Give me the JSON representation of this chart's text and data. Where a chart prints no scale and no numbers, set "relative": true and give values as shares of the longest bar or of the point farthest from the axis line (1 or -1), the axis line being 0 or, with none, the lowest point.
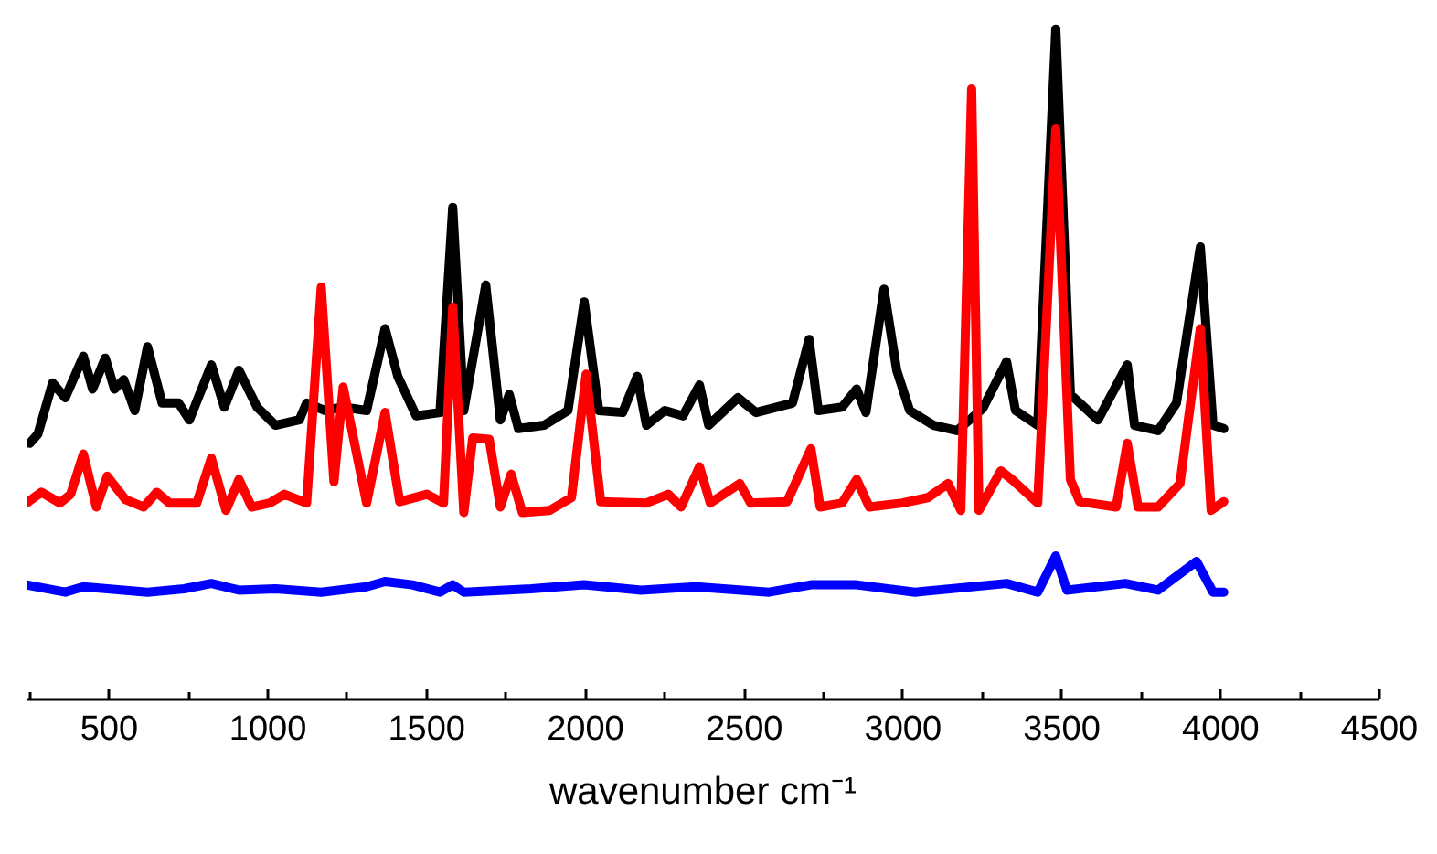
{
  "chart_data": {
    "type": "line",
    "relative": true,
    "xlabel": "wavenumber cm⁻¹",
    "xlim": [
      240,
      4500
    ],
    "xticks": [
      {
        "value": 250,
        "label": null
      },
      500,
      {
        "value": 750,
        "label": null
      },
      1000,
      {
        "value": 1250,
        "label": null
      },
      1500,
      {
        "value": 1750,
        "label": null
      },
      2000,
      {
        "value": 2250,
        "label": null
      },
      2500,
      {
        "value": 2750,
        "label": null
      },
      3000,
      {
        "value": 3250,
        "label": null
      },
      3500,
      {
        "value": 3750,
        "label": null
      },
      4000,
      {
        "value": 4250,
        "label": null
      },
      4500
    ],
    "tick_labels": "x",
    "grid": false,
    "marker": "none",
    "line_style": "solid",
    "series": [
      {
        "color": "#000000",
        "x": [
          250,
          276,
          322,
          362,
          419,
          448,
          488,
          517,
          546,
          581,
          621,
          667,
          719,
          753,
          822,
          863,
          909,
          966,
          1024,
          1099,
          1122,
          1179,
          1237,
          1311,
          1369,
          1409,
          1467,
          1542,
          1582,
          1617,
          1686,
          1732,
          1760,
          1789,
          1870,
          1945,
          1996,
          2042,
          2117,
          2163,
          2192,
          2250,
          2307,
          2359,
          2388,
          2480,
          2537,
          2652,
          2704,
          2733,
          2808,
          2854,
          2883,
          2940,
          2980,
          3021,
          3096,
          3170,
          3251,
          3326,
          3354,
          3424,
          3481,
          3527,
          3614,
          3706,
          3729,
          3803,
          3861,
          3936,
          3976,
          4010
        ],
        "values": [
          0.382,
          0.396,
          0.472,
          0.45,
          0.512,
          0.463,
          0.509,
          0.463,
          0.477,
          0.431,
          0.526,
          0.442,
          0.442,
          0.417,
          0.499,
          0.436,
          0.491,
          0.436,
          0.409,
          0.417,
          0.442,
          0.431,
          0.436,
          0.431,
          0.553,
          0.482,
          0.423,
          0.428,
          0.734,
          0.431,
          0.618,
          0.417,
          0.455,
          0.404,
          0.409,
          0.431,
          0.593,
          0.431,
          0.428,
          0.482,
          0.409,
          0.431,
          0.423,
          0.469,
          0.409,
          0.45,
          0.428,
          0.442,
          0.537,
          0.431,
          0.436,
          0.463,
          0.428,
          0.612,
          0.491,
          0.431,
          0.409,
          0.401,
          0.434,
          0.504,
          0.431,
          0.409,
          1.0,
          0.455,
          0.417,
          0.499,
          0.409,
          0.401,
          0.442,
          0.675,
          0.409,
          0.404
        ]
      },
      {
        "color": "#ff0000",
        "x": [
          240,
          287,
          345,
          379,
          419,
          460,
          494,
          552,
          609,
          650,
          690,
          776,
          822,
          868,
          909,
          949,
          1006,
          1052,
          1122,
          1168,
          1208,
          1237,
          1311,
          1369,
          1415,
          1501,
          1553,
          1582,
          1617,
          1645,
          1697,
          1732,
          1766,
          1801,
          1887,
          1956,
          2002,
          2048,
          2192,
          2261,
          2301,
          2359,
          2393,
          2486,
          2520,
          2635,
          2710,
          2739,
          2808,
          2854,
          2894,
          2998,
          3078,
          3142,
          3182,
          3216,
          3239,
          3308,
          3343,
          3424,
          3481,
          3527,
          3556,
          3671,
          3706,
          3740,
          3803,
          3872,
          3936,
          3970,
          4010
        ],
        "values": [
          0.293,
          0.309,
          0.293,
          0.306,
          0.366,
          0.287,
          0.333,
          0.298,
          0.287,
          0.309,
          0.293,
          0.293,
          0.36,
          0.282,
          0.328,
          0.287,
          0.293,
          0.306,
          0.293,
          0.615,
          0.325,
          0.466,
          0.293,
          0.428,
          0.295,
          0.306,
          0.293,
          0.585,
          0.279,
          0.39,
          0.388,
          0.287,
          0.336,
          0.279,
          0.282,
          0.301,
          0.485,
          0.295,
          0.293,
          0.306,
          0.287,
          0.347,
          0.293,
          0.322,
          0.293,
          0.295,
          0.374,
          0.287,
          0.293,
          0.328,
          0.287,
          0.293,
          0.301,
          0.322,
          0.282,
          0.911,
          0.282,
          0.341,
          0.328,
          0.293,
          0.851,
          0.328,
          0.295,
          0.287,
          0.382,
          0.287,
          0.287,
          0.322,
          0.553,
          0.282,
          0.295
        ]
      },
      {
        "color": "#0000ff",
        "x": [
          240,
          362,
          419,
          621,
          736,
          822,
          909,
          1024,
          1168,
          1311,
          1369,
          1455,
          1542,
          1582,
          1617,
          1829,
          1996,
          2175,
          2347,
          2578,
          2710,
          2854,
          3038,
          3326,
          3424,
          3481,
          3516,
          3700,
          3803,
          3924,
          3976,
          4010
        ],
        "values": [
          0.171,
          0.16,
          0.168,
          0.16,
          0.165,
          0.173,
          0.163,
          0.165,
          0.16,
          0.168,
          0.176,
          0.171,
          0.16,
          0.171,
          0.16,
          0.165,
          0.171,
          0.163,
          0.168,
          0.16,
          0.171,
          0.171,
          0.16,
          0.173,
          0.16,
          0.214,
          0.163,
          0.173,
          0.163,
          0.206,
          0.16,
          0.16
        ]
      }
    ]
  }
}
